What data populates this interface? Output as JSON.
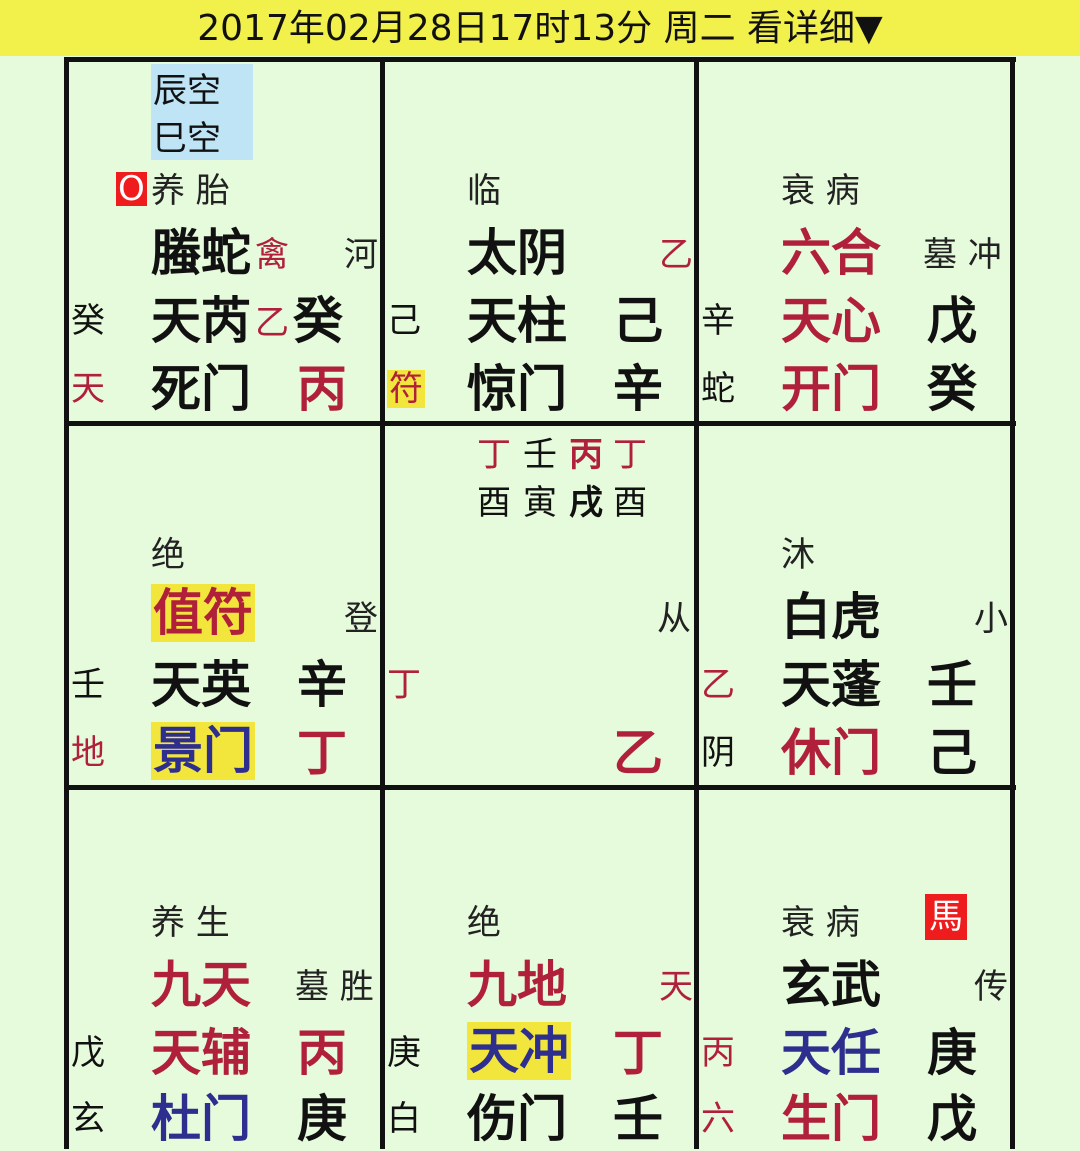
{
  "header": {
    "title": "2017年02月28日17时13分 周二 看详细▼"
  },
  "colors": {
    "header_bg": "#f2f04b",
    "page_bg": "#e6fadc",
    "red_text": "#b0203a",
    "blue_text": "#2e2e8e",
    "highlight": "#f2e63c",
    "kong_bg": "#bfe4f6",
    "badge_red": "#ee1c1c"
  },
  "palaces": {
    "top_left": {
      "kong": [
        "辰空",
        "巳空"
      ],
      "badge": "O",
      "state": "养 胎",
      "god": "螣蛇",
      "god_tag": "禽",
      "right_mark": "河",
      "outer_stem": "癸",
      "star": "天芮",
      "star_tag": "乙",
      "star_stem": "癸",
      "outer_god": "天",
      "door": "死门",
      "door_stem": "丙"
    },
    "top_mid": {
      "state": "临",
      "god": "太阴",
      "right_mark": "乙",
      "outer_stem": "己",
      "star": "天柱",
      "star_stem": "己",
      "outer_god": "符",
      "door": "惊门",
      "door_stem": "辛"
    },
    "top_right": {
      "state": "衰 病",
      "god": "六合",
      "right_mark": "墓 冲",
      "outer_stem": "辛",
      "star": "天心",
      "star_stem": "戊",
      "outer_god": "蛇",
      "door": "开门",
      "door_stem": "癸"
    },
    "mid_left": {
      "state": "绝",
      "god": "值符",
      "right_mark": "登",
      "outer_stem": "壬",
      "star": "天英",
      "star_stem": "辛",
      "outer_god": "地",
      "door": "景门",
      "door_stem": "丁"
    },
    "center": {
      "stems": [
        "丁",
        "壬",
        "丙",
        "丁"
      ],
      "branches": [
        "酉",
        "寅",
        "戌",
        "酉"
      ],
      "right_mark": "从",
      "left_stem": "丁",
      "bottom_stem": "乙"
    },
    "mid_right": {
      "state": "沐",
      "god": "白虎",
      "right_mark": "小",
      "outer_stem": "乙",
      "star": "天蓬",
      "star_stem": "壬",
      "outer_god": "阴",
      "door": "休门",
      "door_stem": "己"
    },
    "bot_left": {
      "state": "养 生",
      "god": "九天",
      "right_mark": "墓 胜",
      "outer_stem": "戊",
      "star": "天辅",
      "star_stem": "丙",
      "outer_god": "玄",
      "door": "杜门",
      "door_stem": "庚"
    },
    "bot_mid": {
      "state": "绝",
      "god": "九地",
      "right_mark": "天",
      "outer_stem": "庚",
      "star": "天冲",
      "star_stem": "丁",
      "outer_god": "白",
      "door": "伤门",
      "door_stem": "壬"
    },
    "bot_right": {
      "badge": "馬",
      "state": "衰 病",
      "god": "玄武",
      "right_mark": "传",
      "outer_stem": "丙",
      "star": "天任",
      "star_stem": "庚",
      "outer_god": "六",
      "door": "生门",
      "door_stem": "戊"
    }
  }
}
